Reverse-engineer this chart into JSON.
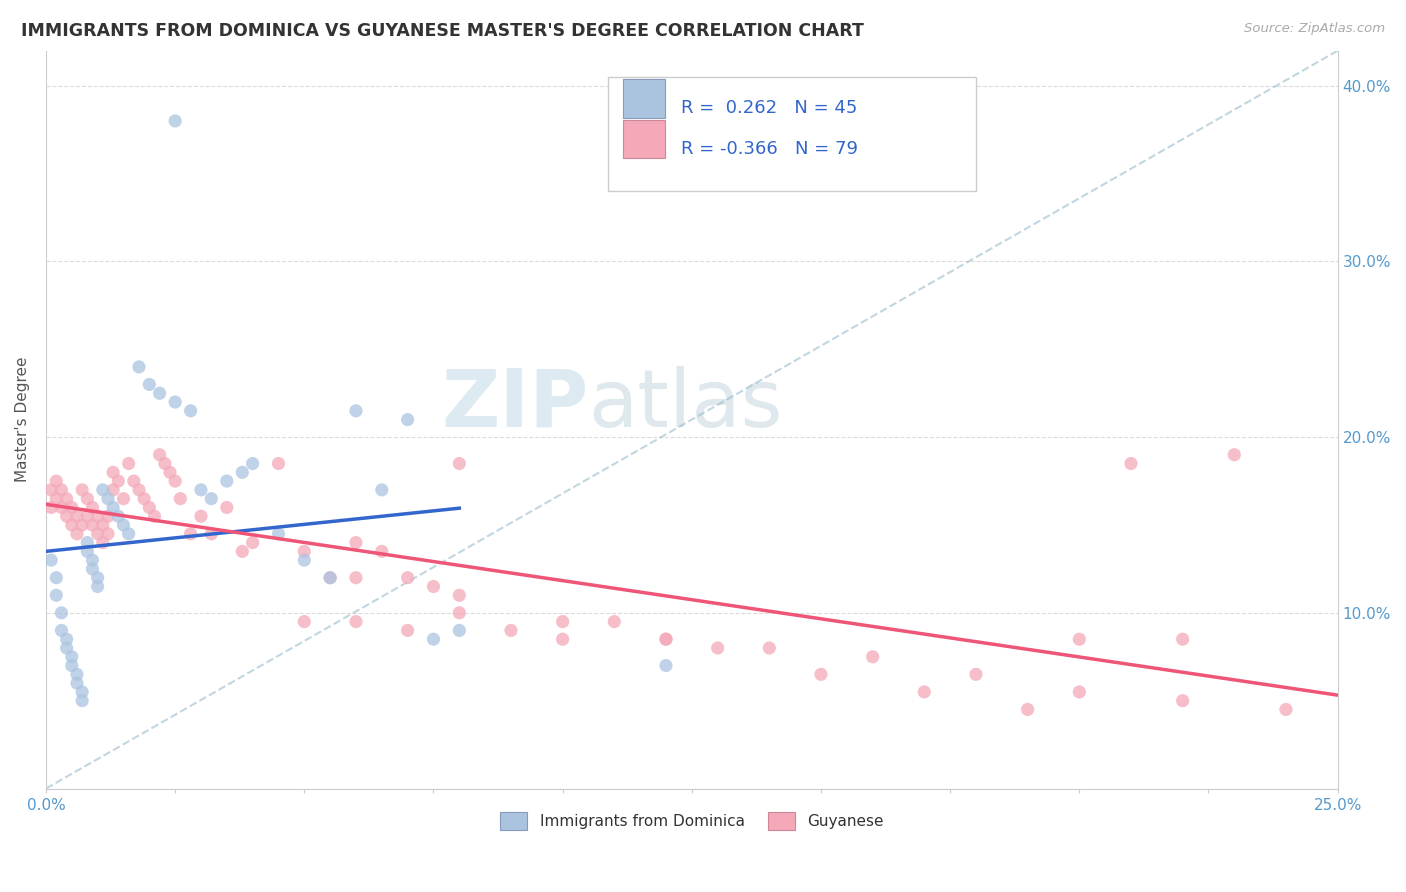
{
  "title": "IMMIGRANTS FROM DOMINICA VS GUYANESE MASTER'S DEGREE CORRELATION CHART",
  "source": "Source: ZipAtlas.com",
  "ylabel": "Master's Degree",
  "watermark_zip": "ZIP",
  "watermark_atlas": "atlas",
  "legend_label1": "Immigrants from Dominica",
  "legend_label2": "Guyanese",
  "R1": 0.262,
  "N1": 45,
  "R2": -0.366,
  "N2": 79,
  "color1": "#aac4e0",
  "color2": "#f4a8b8",
  "line1_color": "#3366cc",
  "line2_color": "#ee5577",
  "dash_color": "#99bbcc",
  "xlim": [
    0.0,
    0.25
  ],
  "ylim": [
    0.0,
    0.42
  ],
  "dominica_x": [
    0.001,
    0.002,
    0.002,
    0.003,
    0.003,
    0.004,
    0.004,
    0.005,
    0.005,
    0.006,
    0.006,
    0.007,
    0.007,
    0.008,
    0.008,
    0.009,
    0.009,
    0.01,
    0.01,
    0.011,
    0.012,
    0.013,
    0.014,
    0.015,
    0.016,
    0.018,
    0.02,
    0.022,
    0.025,
    0.028,
    0.03,
    0.032,
    0.035,
    0.038,
    0.04,
    0.045,
    0.05,
    0.055,
    0.06,
    0.065,
    0.07,
    0.075,
    0.025,
    0.08,
    0.12
  ],
  "dominica_y": [
    0.13,
    0.12,
    0.11,
    0.1,
    0.09,
    0.085,
    0.08,
    0.075,
    0.07,
    0.065,
    0.06,
    0.055,
    0.05,
    0.14,
    0.135,
    0.13,
    0.125,
    0.12,
    0.115,
    0.17,
    0.165,
    0.16,
    0.155,
    0.15,
    0.145,
    0.24,
    0.23,
    0.225,
    0.22,
    0.215,
    0.17,
    0.165,
    0.175,
    0.18,
    0.185,
    0.145,
    0.13,
    0.12,
    0.215,
    0.17,
    0.21,
    0.085,
    0.38,
    0.09,
    0.07
  ],
  "guyanese_x": [
    0.001,
    0.001,
    0.002,
    0.002,
    0.003,
    0.003,
    0.004,
    0.004,
    0.005,
    0.005,
    0.006,
    0.006,
    0.007,
    0.007,
    0.008,
    0.008,
    0.009,
    0.009,
    0.01,
    0.01,
    0.011,
    0.011,
    0.012,
    0.012,
    0.013,
    0.013,
    0.014,
    0.015,
    0.016,
    0.017,
    0.018,
    0.019,
    0.02,
    0.021,
    0.022,
    0.023,
    0.024,
    0.025,
    0.026,
    0.028,
    0.03,
    0.032,
    0.035,
    0.038,
    0.04,
    0.045,
    0.05,
    0.055,
    0.06,
    0.065,
    0.07,
    0.075,
    0.08,
    0.09,
    0.1,
    0.11,
    0.12,
    0.13,
    0.15,
    0.17,
    0.19,
    0.21,
    0.23,
    0.05,
    0.06,
    0.07,
    0.08,
    0.1,
    0.12,
    0.14,
    0.16,
    0.18,
    0.2,
    0.22,
    0.24,
    0.2,
    0.22,
    0.06,
    0.08
  ],
  "guyanese_y": [
    0.17,
    0.16,
    0.175,
    0.165,
    0.17,
    0.16,
    0.165,
    0.155,
    0.16,
    0.15,
    0.155,
    0.145,
    0.15,
    0.17,
    0.165,
    0.155,
    0.16,
    0.15,
    0.155,
    0.145,
    0.15,
    0.14,
    0.155,
    0.145,
    0.18,
    0.17,
    0.175,
    0.165,
    0.185,
    0.175,
    0.17,
    0.165,
    0.16,
    0.155,
    0.19,
    0.185,
    0.18,
    0.175,
    0.165,
    0.145,
    0.155,
    0.145,
    0.16,
    0.135,
    0.14,
    0.185,
    0.135,
    0.12,
    0.14,
    0.135,
    0.12,
    0.115,
    0.11,
    0.09,
    0.085,
    0.095,
    0.085,
    0.08,
    0.065,
    0.055,
    0.045,
    0.185,
    0.19,
    0.095,
    0.12,
    0.09,
    0.185,
    0.095,
    0.085,
    0.08,
    0.075,
    0.065,
    0.055,
    0.05,
    0.045,
    0.085,
    0.085,
    0.095,
    0.1
  ]
}
